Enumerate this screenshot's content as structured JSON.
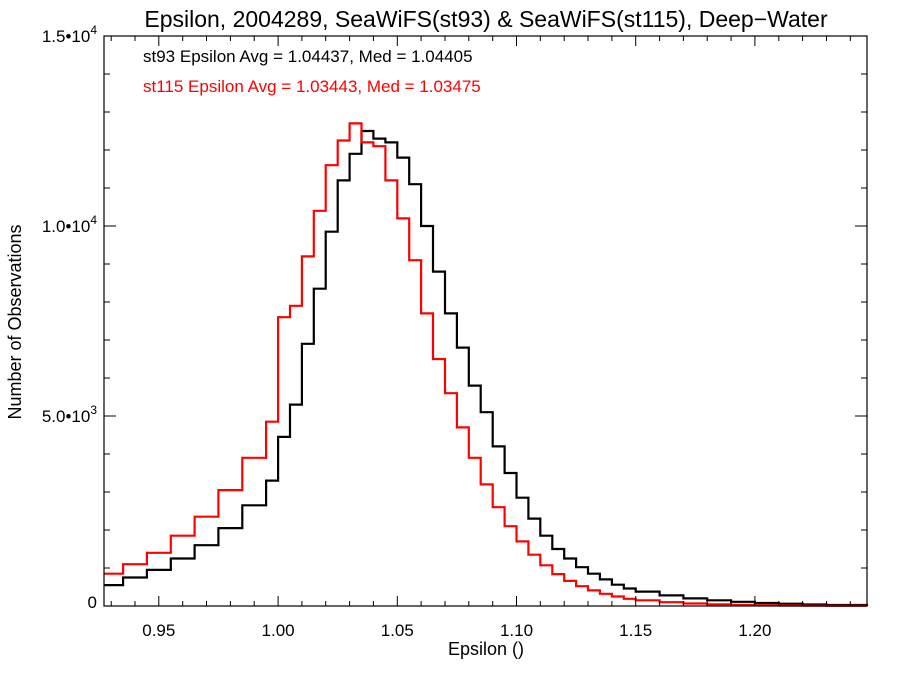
{
  "chart_data": {
    "type": "line",
    "style": "step",
    "title": "Epsilon, 2004289, SeaWiFS(st93) & SeaWiFS(st115), Deep−Water",
    "xlabel": "Epsilon ()",
    "ylabel": "Number of Observations",
    "xlim": [
      0.927,
      1.247
    ],
    "ylim": [
      0,
      15000
    ],
    "x_ticks": [
      {
        "value": 0.95,
        "label": "0.95"
      },
      {
        "value": 1.0,
        "label": "1.00"
      },
      {
        "value": 1.05,
        "label": "1.05"
      },
      {
        "value": 1.1,
        "label": "1.10"
      },
      {
        "value": 1.15,
        "label": "1.15"
      },
      {
        "value": 1.2,
        "label": "1.20"
      }
    ],
    "y_ticks": [
      {
        "value": 0,
        "mantissa": "0",
        "exponent": ""
      },
      {
        "value": 5000,
        "mantissa": "5.0•10",
        "exponent": "3"
      },
      {
        "value": 10000,
        "mantissa": "1.0•10",
        "exponent": "4"
      },
      {
        "value": 15000,
        "mantissa": "1.5•10",
        "exponent": "4"
      }
    ],
    "annotations": [
      {
        "text": "st93 Epsilon Avg = 1.04437, Med = 1.04405",
        "color": "#000000"
      },
      {
        "text": "st115 Epsilon Avg = 1.03443, Med = 1.03475",
        "color": "#ff0000"
      }
    ],
    "series": [
      {
        "id": "st93",
        "color": "#000000",
        "x": [
          0.927,
          0.935,
          0.945,
          0.955,
          0.965,
          0.975,
          0.985,
          0.995,
          1.0,
          1.005,
          1.01,
          1.015,
          1.02,
          1.025,
          1.03,
          1.035,
          1.04,
          1.045,
          1.05,
          1.055,
          1.06,
          1.065,
          1.07,
          1.075,
          1.08,
          1.085,
          1.09,
          1.095,
          1.1,
          1.105,
          1.11,
          1.115,
          1.12,
          1.125,
          1.13,
          1.135,
          1.14,
          1.145,
          1.15,
          1.16,
          1.17,
          1.18,
          1.19,
          1.2,
          1.21,
          1.22,
          1.23,
          1.247
        ],
        "y": [
          550,
          750,
          950,
          1250,
          1600,
          2050,
          2650,
          3300,
          4450,
          5300,
          6900,
          8350,
          9850,
          11200,
          11900,
          12500,
          12300,
          12200,
          11800,
          11100,
          10000,
          8800,
          7700,
          6800,
          5800,
          5100,
          4200,
          3500,
          2850,
          2300,
          1850,
          1500,
          1250,
          1020,
          850,
          700,
          560,
          460,
          380,
          280,
          200,
          150,
          110,
          80,
          60,
          40,
          25,
          10
        ]
      },
      {
        "id": "st115",
        "color": "#ff0000",
        "x": [
          0.927,
          0.935,
          0.945,
          0.955,
          0.965,
          0.975,
          0.985,
          0.995,
          1.0,
          1.005,
          1.01,
          1.015,
          1.02,
          1.025,
          1.03,
          1.035,
          1.04,
          1.045,
          1.05,
          1.055,
          1.06,
          1.065,
          1.07,
          1.075,
          1.08,
          1.085,
          1.09,
          1.095,
          1.1,
          1.105,
          1.11,
          1.115,
          1.12,
          1.125,
          1.13,
          1.135,
          1.14,
          1.145,
          1.15,
          1.16,
          1.17,
          1.18,
          1.19,
          1.2,
          1.21,
          1.22,
          1.23,
          1.247
        ],
        "y": [
          850,
          1100,
          1400,
          1850,
          2350,
          3050,
          3900,
          4850,
          7600,
          7900,
          9200,
          10400,
          11600,
          12250,
          12700,
          12200,
          12100,
          11200,
          10200,
          9100,
          7700,
          6500,
          5600,
          4700,
          3900,
          3200,
          2600,
          2100,
          1700,
          1350,
          1070,
          840,
          660,
          520,
          410,
          320,
          250,
          190,
          150,
          100,
          65,
          45,
          30,
          20,
          12,
          8,
          5,
          2
        ]
      }
    ]
  }
}
